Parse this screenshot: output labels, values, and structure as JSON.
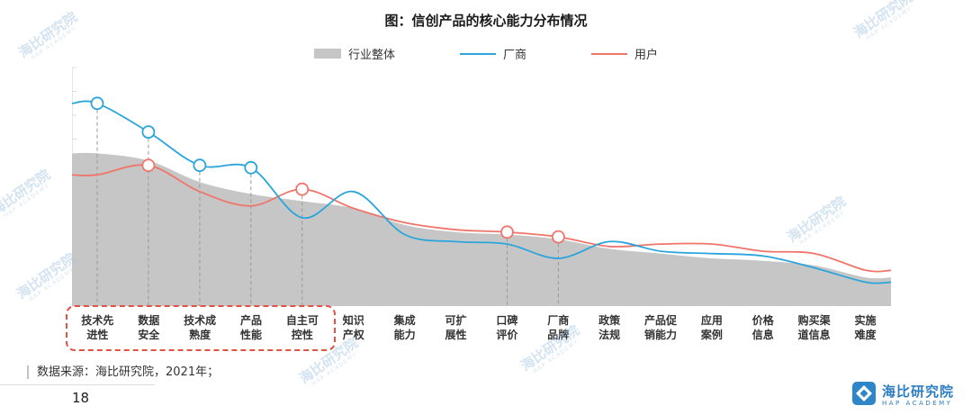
{
  "title": "图：信创产品的核心能力分布情况",
  "legend": [
    {
      "label": "行业整体",
      "type": "area",
      "color": "#c6c6c6"
    },
    {
      "label": "厂商",
      "type": "line",
      "color": "#2aa5dc"
    },
    {
      "label": "用户",
      "type": "line",
      "color": "#f0756b"
    }
  ],
  "chart_data": {
    "type": "area",
    "title": "图：信创产品的核心能力分布情况",
    "categories": [
      "技术先进性",
      "数据安全",
      "技术成熟度",
      "产品性能",
      "自主可控性",
      "知识产权",
      "集成能力",
      "可扩展性",
      "口碑评价",
      "厂商品牌",
      "政策法规",
      "产品促销能力",
      "应用案例",
      "价格信息",
      "购买渠道信息",
      "实施难度"
    ],
    "category_label_lines": [
      [
        "技术先",
        "进性"
      ],
      [
        "数据",
        "安全"
      ],
      [
        "技术成",
        "熟度"
      ],
      [
        "产品",
        "性能"
      ],
      [
        "自主可",
        "控性"
      ],
      [
        "知识",
        "产权"
      ],
      [
        "集成",
        "能力"
      ],
      [
        "可扩",
        "展性"
      ],
      [
        "口碑",
        "评价"
      ],
      [
        "厂商",
        "品牌"
      ],
      [
        "政策",
        "法规"
      ],
      [
        "产品促",
        "销能力"
      ],
      [
        "应用",
        "案例"
      ],
      [
        "价格",
        "信息"
      ],
      [
        "购买渠",
        "道信息"
      ],
      [
        "实施",
        "难度"
      ]
    ],
    "ylim": [
      0,
      100
    ],
    "legend_position": "top",
    "grid": false,
    "series": [
      {
        "name": "行业整体",
        "type": "area",
        "color": "#c6c6c6",
        "values": [
          64,
          61,
          52,
          47,
          44,
          41,
          34,
          31,
          30,
          28,
          24,
          22,
          20,
          19,
          17,
          12
        ]
      },
      {
        "name": "用户",
        "type": "line",
        "color": "#f0756b",
        "values": [
          55,
          59,
          48,
          42,
          49,
          41,
          35,
          32,
          31,
          29,
          25,
          26,
          26,
          23,
          22,
          15
        ],
        "markers": [
          1,
          4,
          8,
          9
        ]
      },
      {
        "name": "厂商",
        "type": "line",
        "color": "#2aa5dc",
        "values": [
          85,
          73,
          59,
          58,
          37,
          48,
          30,
          27,
          26,
          20,
          27,
          23,
          22,
          21,
          16,
          10
        ],
        "markers": [
          0,
          1,
          2,
          3
        ]
      }
    ],
    "highlighted_categories": [
      "技术先进性",
      "数据安全",
      "技术成熟度",
      "产品性能",
      "自主可控性"
    ]
  },
  "source": "数据来源：海比研究院，2021年；",
  "page_number": "18",
  "logo": {
    "name": "海比研究院",
    "subtitle": "HAP ACADEMY"
  },
  "watermark": {
    "text": "海比研究院",
    "subtext": "HAP ACADEMY"
  }
}
